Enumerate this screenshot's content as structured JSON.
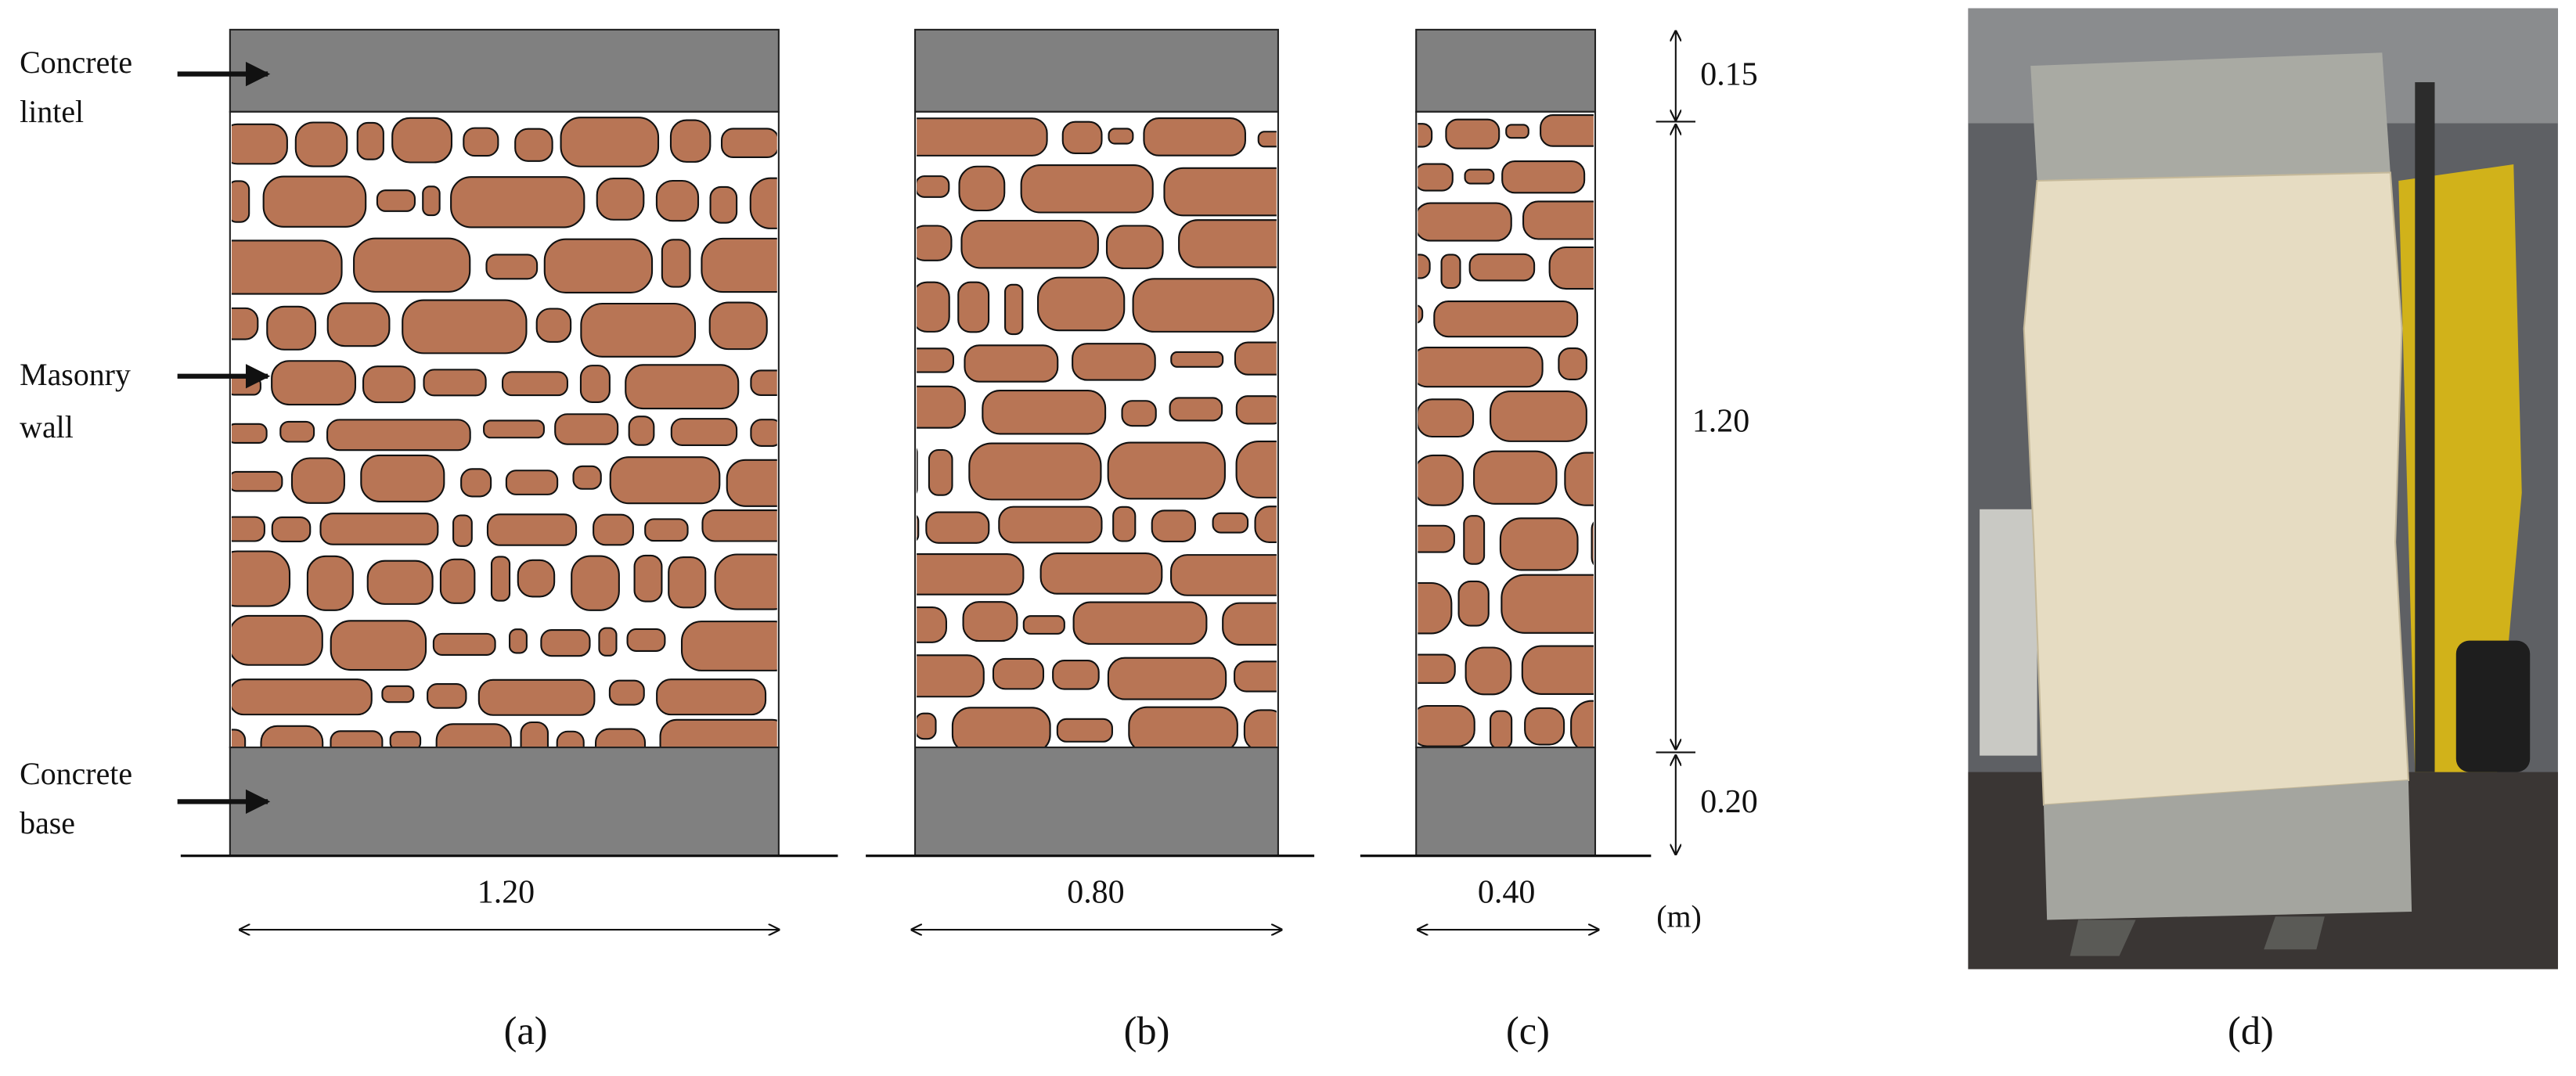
{
  "labels": [
    {
      "lines": [
        "Concrete",
        "lintel"
      ]
    },
    {
      "lines": [
        "Masonry",
        "wall"
      ]
    },
    {
      "lines": [
        "Concrete",
        "base"
      ]
    }
  ],
  "widths": [
    "1.20",
    "0.80",
    "0.40"
  ],
  "heights": [
    "0.15",
    "1.20",
    "0.20"
  ],
  "unit": "(m)",
  "panels": [
    "(a)",
    "(b)",
    "(c)",
    "(d)"
  ]
}
